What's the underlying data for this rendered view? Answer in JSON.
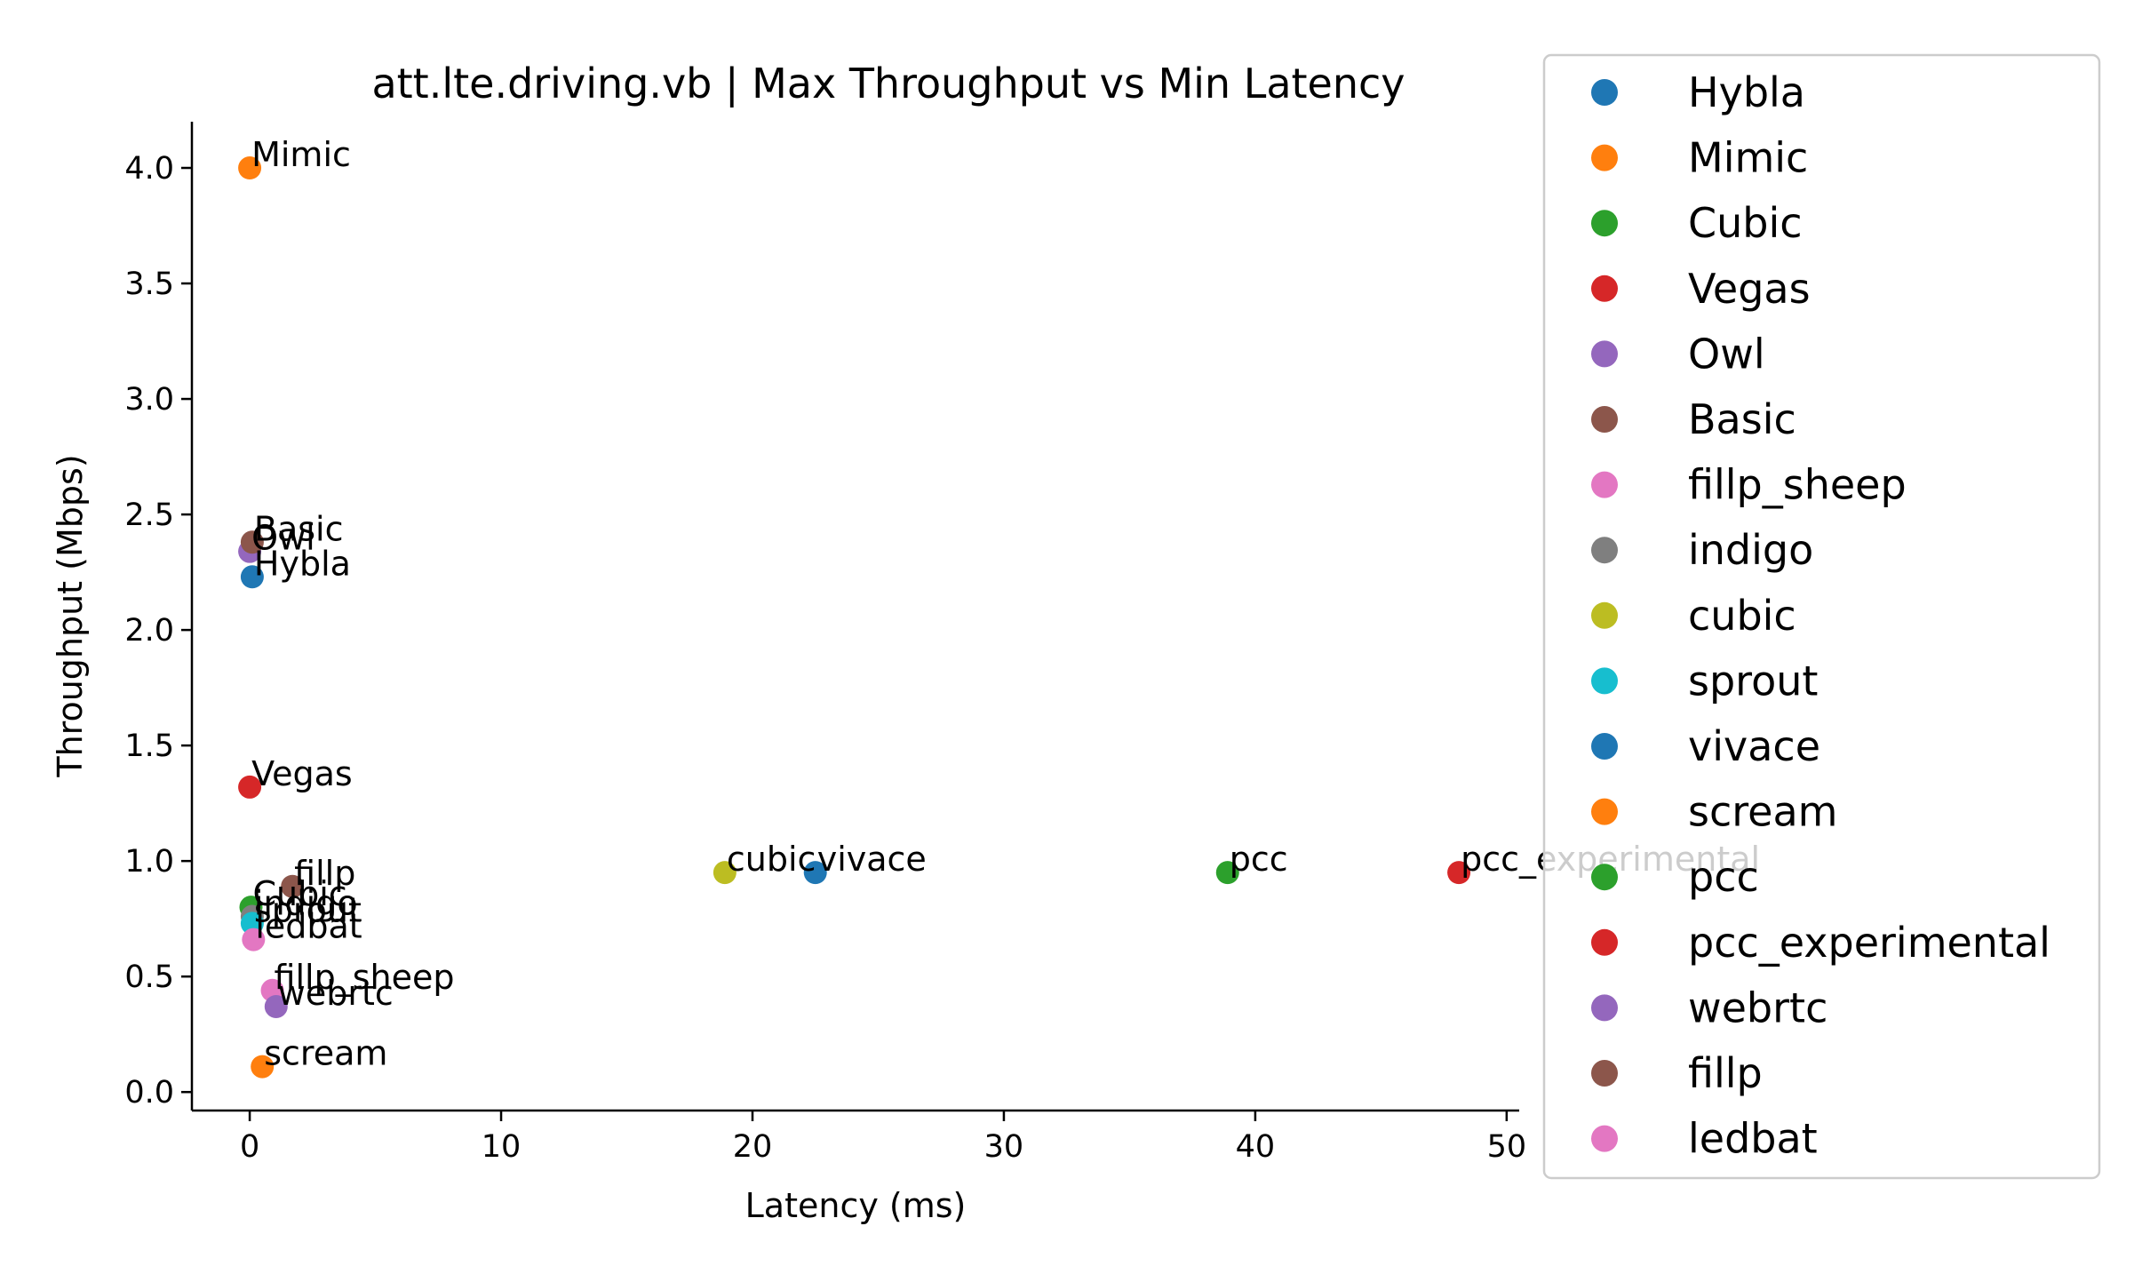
{
  "chart_data": {
    "type": "scatter",
    "title": "att.lte.driving.vb | Max Throughput vs Min Latency",
    "xlabel": "Latency (ms)",
    "ylabel": "Throughput (Mbps)",
    "xlim": [
      -2.3,
      50.5
    ],
    "ylim": [
      -0.08,
      4.2
    ],
    "xticks": [
      0,
      10,
      20,
      30,
      40,
      50
    ],
    "yticks": [
      0.0,
      0.5,
      1.0,
      1.5,
      2.0,
      2.5,
      3.0,
      3.5,
      4.0
    ],
    "xtick_labels": [
      "0",
      "10",
      "20",
      "30",
      "40",
      "50"
    ],
    "ytick_labels": [
      "0.0",
      "0.5",
      "1.0",
      "1.5",
      "2.0",
      "2.5",
      "3.0",
      "3.5",
      "4.0"
    ],
    "grid": false,
    "legend_position": "right",
    "series": [
      {
        "name": "Hybla",
        "color": "#1f77b4",
        "x": 0.1,
        "y": 2.23
      },
      {
        "name": "Mimic",
        "color": "#ff7f0e",
        "x": 0.0,
        "y": 4.0
      },
      {
        "name": "Cubic",
        "color": "#2ca02c",
        "x": 0.05,
        "y": 0.8
      },
      {
        "name": "Vegas",
        "color": "#d62728",
        "x": 0.0,
        "y": 1.32
      },
      {
        "name": "Owl",
        "color": "#9467bd",
        "x": 0.0,
        "y": 2.34
      },
      {
        "name": "Basic",
        "color": "#8c564b",
        "x": 0.1,
        "y": 2.38
      },
      {
        "name": "fillp_sheep",
        "color": "#e377c2",
        "x": 0.9,
        "y": 0.44
      },
      {
        "name": "indigo",
        "color": "#7f7f7f",
        "x": 0.1,
        "y": 0.76
      },
      {
        "name": "cubic",
        "color": "#bcbd22",
        "x": 18.9,
        "y": 0.95
      },
      {
        "name": "sprout",
        "color": "#17becf",
        "x": 0.1,
        "y": 0.73
      },
      {
        "name": "vivace",
        "color": "#1f77b4",
        "x": 22.5,
        "y": 0.95
      },
      {
        "name": "scream",
        "color": "#ff7f0e",
        "x": 0.5,
        "y": 0.11
      },
      {
        "name": "pcc",
        "color": "#2ca02c",
        "x": 38.9,
        "y": 0.95
      },
      {
        "name": "pcc_experimental",
        "color": "#d62728",
        "x": 48.1,
        "y": 0.95
      },
      {
        "name": "webrtc",
        "color": "#9467bd",
        "x": 1.05,
        "y": 0.37
      },
      {
        "name": "fillp",
        "color": "#8c564b",
        "x": 1.7,
        "y": 0.89
      },
      {
        "name": "ledbat",
        "color": "#e377c2",
        "x": 0.15,
        "y": 0.66
      }
    ]
  }
}
